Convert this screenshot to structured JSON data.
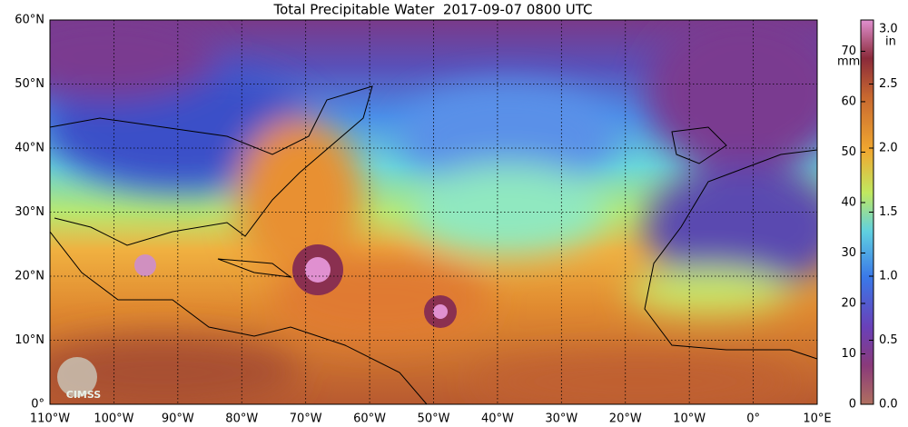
{
  "title": "Total Precipitable Water  2017-09-07 0800 UTC",
  "lat_labels": [
    "0°",
    "10°N",
    "20°N",
    "30°N",
    "40°N",
    "50°N",
    "60°N"
  ],
  "lon_labels": [
    "110°W",
    "100°W",
    "90°W",
    "80°W",
    "70°W",
    "60°W",
    "50°W",
    "40°W",
    "30°W",
    "20°W",
    "10°W",
    "0°",
    "10°E"
  ],
  "colorbar": {
    "mm_unit": "mm",
    "in_unit": "in",
    "mm_ticks": [
      "0",
      "10",
      "20",
      "30",
      "40",
      "50",
      "60",
      "70"
    ],
    "in_ticks": [
      "0.0",
      "0.5",
      "1.0",
      "1.5",
      "2.0",
      "2.5",
      "3.0"
    ]
  },
  "logo": "CIMSS"
}
